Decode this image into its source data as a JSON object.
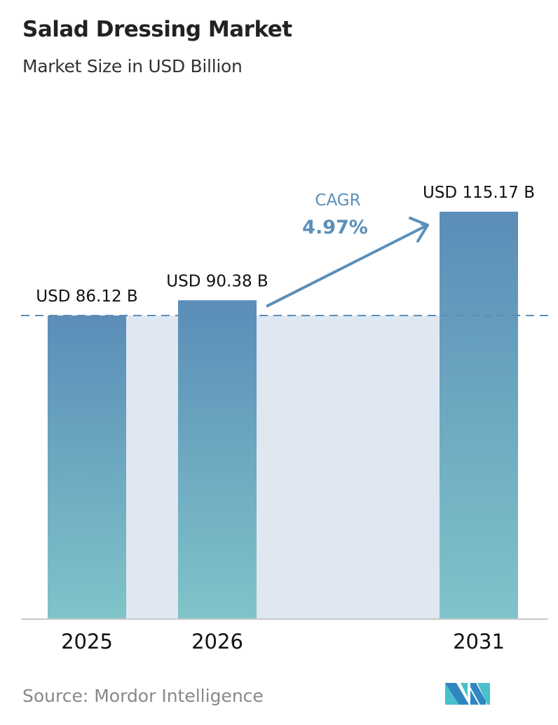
{
  "title": "Salad Dressing Market",
  "subtitle": "Market Size in USD Billion",
  "source": "Source:  Mordor Intelligence",
  "logo_text": "Mordor Intelligence logo",
  "colors": {
    "bar_top": "#5b8db8",
    "bar_bottom": "#80c4c9",
    "band": "#dfe8f1",
    "accent": "#5b8fb8"
  },
  "chart_data": {
    "type": "bar",
    "categories": [
      "2025",
      "2026",
      "2031"
    ],
    "values": [
      86.12,
      90.38,
      115.17
    ],
    "data_labels": [
      "USD 86.12 B",
      "USD 90.38 B",
      "USD 115.17 B"
    ],
    "annotation": {
      "label": "CAGR",
      "value": "4.97%"
    },
    "reference_line": 86.12,
    "grid": false,
    "xlabel": "",
    "ylabel": ""
  }
}
